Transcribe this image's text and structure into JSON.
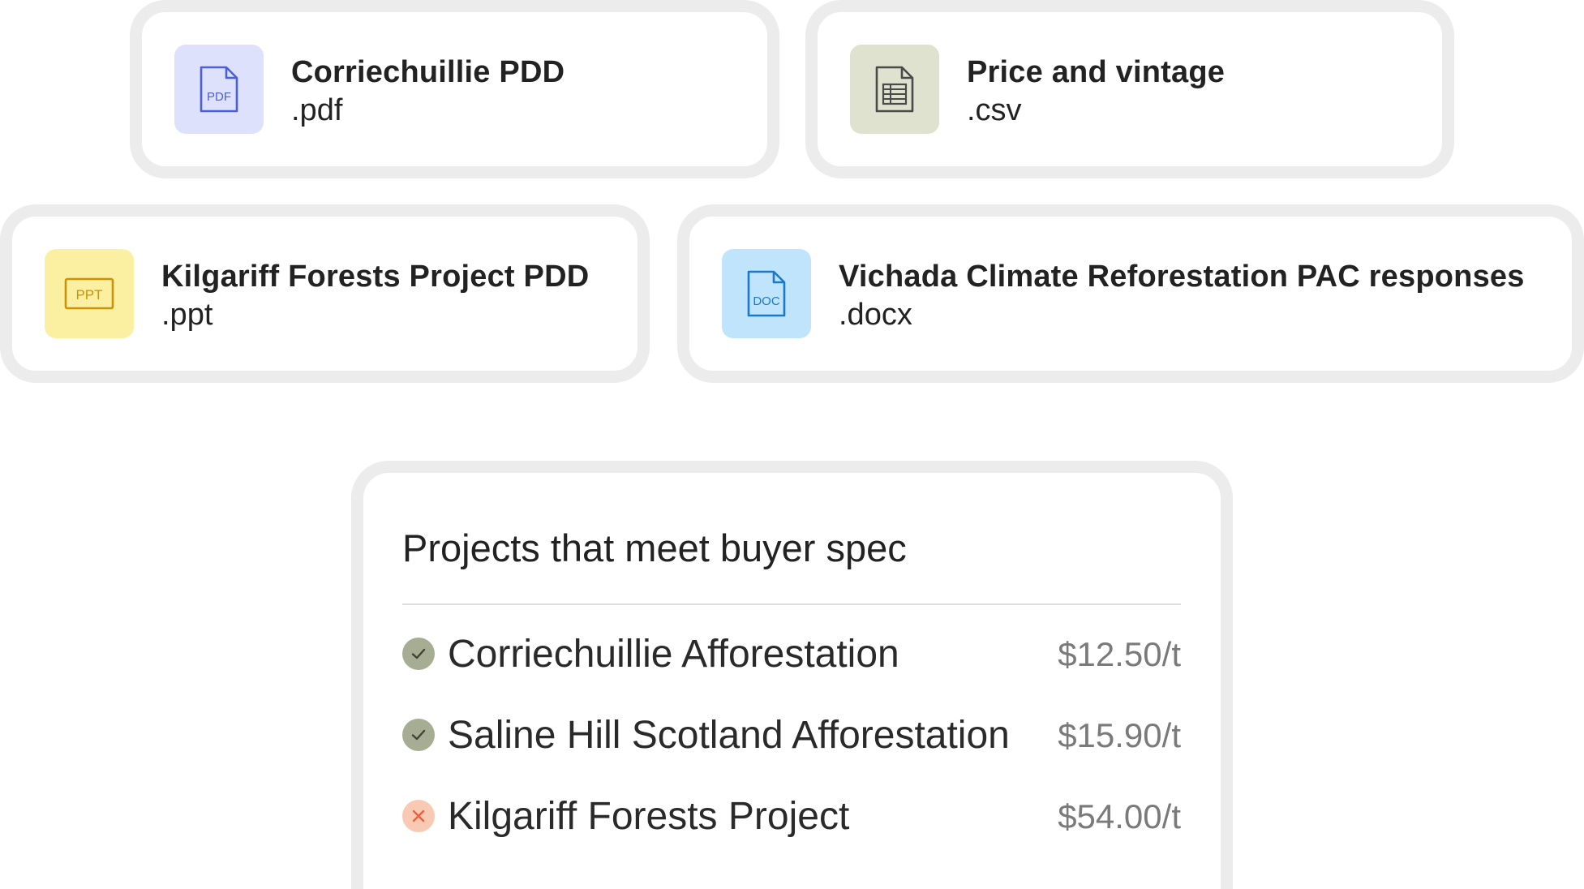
{
  "files": [
    {
      "name": "Corriechuillie PDD",
      "ext": ".pdf",
      "icon": "pdf-file-icon",
      "icon_label": "PDF",
      "icon_bg": "#dde1fc",
      "icon_color": "#4b5fd6"
    },
    {
      "name": "Price and vintage",
      "ext": ".csv",
      "icon": "spreadsheet-file-icon",
      "icon_bg": "#dfe2cf",
      "icon_color": "#4a4a4a"
    },
    {
      "name": "Kilgariff Forests Project PDD",
      "ext": ".ppt",
      "icon": "ppt-file-icon",
      "icon_label": "PPT",
      "icon_bg": "#fbf0a1",
      "icon_color": "#c99208"
    },
    {
      "name": "Vichada Climate Reforestation PAC responses",
      "ext": ".docx",
      "icon": "doc-file-icon",
      "icon_label": "DOC",
      "icon_bg": "#bfe4fc",
      "icon_color": "#1b79c9"
    }
  ],
  "results": {
    "title": "Projects that meet buyer spec",
    "items": [
      {
        "name": "Corriechuillie Afforestation",
        "price": "$12.50/t",
        "status": "pass",
        "icon": "check-circle-icon"
      },
      {
        "name": "Saline Hill Scotland Afforestation",
        "price": "$15.90/t",
        "status": "pass",
        "icon": "check-circle-icon"
      },
      {
        "name": "Kilgariff Forests Project",
        "price": "$54.00/t",
        "status": "fail",
        "icon": "x-circle-icon"
      }
    ]
  },
  "colors": {
    "card_border": "#ececec",
    "pass": "#a6ad92",
    "fail_bg": "#f8c9b3",
    "fail_mark": "#e8623c",
    "price_text": "#7a7a7a"
  }
}
